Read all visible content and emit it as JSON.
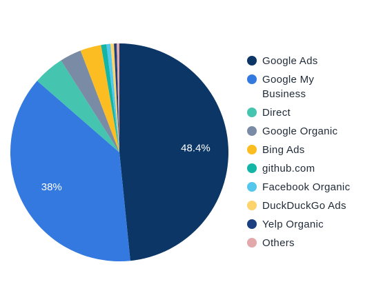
{
  "chart_data": {
    "type": "pie",
    "categories": [
      "Google Ads",
      "Google My Business",
      "Direct",
      "Google Organic",
      "Bing Ads",
      "github.com",
      "Facebook Organic",
      "DuckDuckGo Ads",
      "Yelp Organic",
      "Others"
    ],
    "values": [
      48.4,
      38,
      4.6,
      3.2,
      3.1,
      0.8,
      0.6,
      0.5,
      0.4,
      0.4
    ],
    "value_labels": [
      "48.4%",
      "38%",
      null,
      null,
      null,
      null,
      null,
      null,
      null,
      null
    ],
    "colors": [
      "#0b3665",
      "#3479e0",
      "#45c4b0",
      "#7a8ca5",
      "#fbbd22",
      "#13b5a6",
      "#54c7ec",
      "#fdd36b",
      "#1c3f80",
      "#e3a8ab"
    ],
    "legend": "right"
  }
}
